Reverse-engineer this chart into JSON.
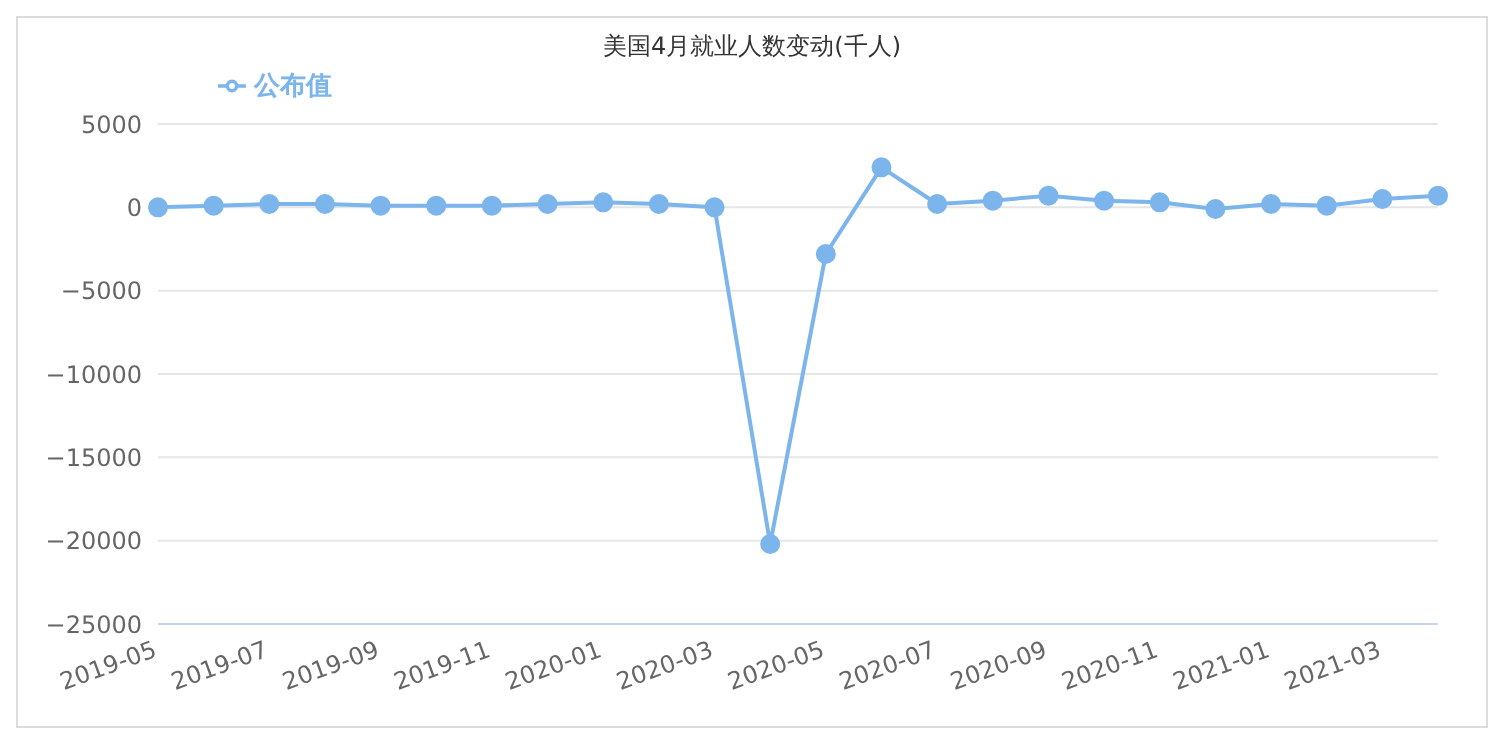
{
  "chart_data": {
    "type": "line",
    "title": "美国4月就业人数变动(千人)",
    "categories": [
      "2019-05",
      null,
      "2019-07",
      null,
      "2019-09",
      null,
      "2019-11",
      null,
      "2020-01",
      null,
      "2020-03",
      null,
      "2020-05",
      null,
      "2020-07",
      null,
      "2020-09",
      null,
      "2020-11",
      null,
      "2021-01",
      null,
      "2021-03",
      null
    ],
    "series": [
      {
        "name": "公布值",
        "color": "#7cb5ec",
        "values": [
          0,
          100,
          200,
          200,
          100,
          100,
          100,
          200,
          300,
          200,
          0,
          -20200,
          -2800,
          2400,
          200,
          400,
          700,
          400,
          300,
          -100,
          200,
          100,
          500,
          700
        ]
      }
    ],
    "ylim": [
      -25000,
      5000
    ],
    "yticks": [
      -25000,
      -20000,
      -15000,
      -10000,
      -5000,
      0,
      5000
    ],
    "grid": "y",
    "legend": "top left",
    "marker": "circle",
    "line_style": "solid"
  }
}
